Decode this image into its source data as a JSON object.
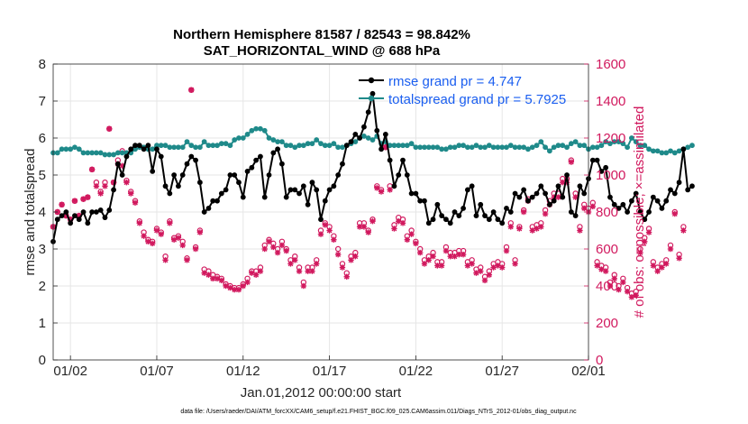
{
  "chart_data": {
    "type": "line",
    "title": "Northern Hemisphere 81587 / 82543 = 98.842%",
    "subtitle": "SAT_HORIZONTAL_WIND @ 688 hPa",
    "xlabel": "Jan.01,2012 00:00:00 start",
    "ylabel_left": "rmse and totalspread",
    "ylabel_right": "# of obs: o=possible; ×=assimilated",
    "footer": "data file: /Users/raeder/DAI/ATM_forcXX/CAM6_setup/f.e21.FHIST_BGC.f09_025.CAM6assim.011/Diags_NTrS_2012-01/obs_diag_output.nc",
    "xlim": [
      0.5,
      31.5
    ],
    "ylim_left": [
      0,
      8
    ],
    "ylim_right": [
      0,
      1600
    ],
    "x_ticks": [
      1.5,
      6.5,
      11.5,
      16.5,
      21.5,
      26.5,
      31.5
    ],
    "x_tick_labels": [
      "01/02",
      "01/07",
      "01/12",
      "01/17",
      "01/22",
      "01/27",
      "02/01"
    ],
    "y_ticks_left": [
      0,
      1,
      2,
      3,
      4,
      5,
      6,
      7,
      8
    ],
    "y_ticks_right": [
      0,
      200,
      400,
      600,
      800,
      1000,
      1200,
      1400,
      1600
    ],
    "grid": true,
    "legend_position": "top-right",
    "colors": {
      "rmse": "#000000",
      "spread": "#1f8a8a",
      "obs": "#d1195e",
      "legend_text": "#1a5ef0",
      "right_axis": "#d1195e"
    },
    "series": [
      {
        "name": "rmse grand pr = 4.747",
        "color": "#000000",
        "x_start": 0.5,
        "x_step": 0.25,
        "values": [
          3.2,
          3.8,
          3.9,
          4.0,
          3.7,
          3.9,
          3.8,
          4.0,
          3.7,
          4.0,
          4.0,
          4.05,
          3.85,
          4.05,
          4.6,
          5.3,
          5.0,
          5.5,
          5.7,
          5.8,
          5.8,
          5.7,
          5.8,
          5.1,
          5.7,
          5.5,
          4.7,
          4.5,
          5.0,
          4.7,
          5.0,
          5.3,
          5.5,
          5.4,
          4.8,
          4.0,
          4.1,
          4.3,
          4.3,
          4.5,
          4.6,
          5.0,
          5.0,
          4.8,
          4.4,
          5.1,
          5.2,
          5.4,
          5.5,
          4.4,
          5.0,
          5.6,
          5.7,
          5.3,
          4.4,
          4.6,
          4.6,
          4.5,
          4.7,
          4.2,
          4.8,
          4.6,
          3.8,
          4.3,
          4.6,
          4.7,
          5.0,
          5.3,
          5.8,
          5.9,
          6.1,
          6.0,
          6.3,
          6.7,
          7.2,
          6.2,
          5.7,
          6.1,
          5.4,
          4.7,
          5.0,
          5.4,
          5.0,
          4.5,
          4.5,
          4.3,
          4.3,
          3.7,
          3.8,
          4.2,
          3.9,
          3.8,
          3.7,
          4.0,
          3.9,
          4.1,
          4.6,
          4.7,
          3.9,
          4.2,
          3.9,
          3.8,
          4.0,
          3.8,
          3.7,
          4.1,
          4.0,
          4.5,
          4.4,
          4.6,
          4.3,
          4.4,
          4.5,
          4.7,
          4.5,
          4.2,
          4.3,
          4.7,
          4.4,
          5.0,
          4.0,
          3.9,
          4.7,
          4.5,
          4.9,
          5.4,
          5.4,
          5.1,
          5.2,
          4.4,
          4.2,
          4.1,
          4.2,
          4.0,
          4.3,
          4.5,
          4.0,
          3.8,
          4.0,
          4.4,
          4.3,
          4.1,
          4.3,
          4.6,
          4.5,
          4.8,
          5.7,
          4.6,
          4.7
        ]
      },
      {
        "name": "totalspread grand pr = 5.7925",
        "color": "#1f8a8a",
        "x_start": 0.5,
        "x_step": 0.25,
        "values": [
          5.6,
          5.6,
          5.7,
          5.7,
          5.7,
          5.75,
          5.7,
          5.6,
          5.6,
          5.6,
          5.6,
          5.6,
          5.55,
          5.55,
          5.55,
          5.6,
          5.6,
          5.6,
          5.6,
          5.7,
          5.75,
          5.75,
          5.7,
          5.7,
          5.8,
          5.8,
          5.8,
          5.75,
          5.75,
          5.75,
          5.75,
          5.9,
          5.8,
          5.75,
          5.75,
          5.9,
          5.8,
          5.8,
          5.8,
          5.85,
          5.85,
          5.8,
          5.95,
          6.0,
          6.0,
          6.1,
          6.2,
          6.25,
          6.25,
          6.2,
          6.0,
          5.95,
          5.9,
          5.9,
          5.8,
          5.8,
          5.75,
          5.8,
          5.8,
          5.85,
          5.85,
          5.95,
          5.85,
          5.8,
          5.8,
          5.85,
          5.75,
          5.75,
          5.8,
          5.85,
          5.9,
          6.0,
          6.05,
          6.0,
          5.95,
          6.05,
          5.85,
          5.9,
          5.8,
          5.8,
          5.8,
          5.8,
          5.8,
          5.85,
          5.75,
          5.75,
          5.75,
          5.75,
          5.75,
          5.75,
          5.7,
          5.7,
          5.75,
          5.75,
          5.8,
          5.8,
          5.75,
          5.75,
          5.8,
          5.75,
          5.75,
          5.8,
          5.75,
          5.75,
          5.75,
          5.75,
          5.8,
          5.75,
          5.75,
          5.75,
          5.7,
          5.75,
          5.8,
          5.9,
          5.75,
          5.65,
          5.75,
          5.8,
          5.8,
          5.75,
          5.85,
          5.9,
          5.8,
          5.8,
          5.7,
          5.75,
          5.75,
          5.8,
          5.9,
          5.85,
          5.9,
          5.9,
          5.85,
          5.75,
          6.0,
          5.9,
          5.8,
          5.8,
          5.7,
          5.65,
          5.65,
          5.6,
          5.6,
          5.65,
          5.6,
          5.65,
          5.7,
          5.75,
          5.8
        ]
      }
    ],
    "obs_assimilated": {
      "x_start": 0.5,
      "x_step": 0.25,
      "values": [
        720,
        800,
        840,
        780,
        760,
        860,
        780,
        870,
        880,
        1030,
        940,
        900,
        940,
        1250,
        960,
        1060,
        1050,
        960,
        900,
        850,
        740,
        670,
        640,
        630,
        700,
        680,
        540,
        740,
        650,
        660,
        620,
        540,
        1460,
        600,
        690,
        470,
        460,
        440,
        440,
        430,
        400,
        390,
        380,
        380,
        400,
        420,
        470,
        460,
        480,
        600,
        640,
        610,
        580,
        620,
        590,
        520,
        540,
        480,
        400,
        480,
        480,
        520,
        680,
        730,
        700,
        650,
        570,
        500,
        450,
        540,
        560,
        720,
        720,
        690,
        750,
        930,
        910,
        1150,
        920,
        710,
        750,
        740,
        650,
        680,
        630,
        580,
        520,
        540,
        560,
        510,
        510,
        590,
        560,
        560,
        570,
        570,
        510,
        520,
        470,
        480,
        430,
        460,
        500,
        510,
        500,
        590,
        720,
        520,
        710,
        800,
        860,
        700,
        710,
        720,
        790,
        840,
        880,
        880,
        960,
        960,
        1070,
        880,
        700,
        820,
        800,
        830,
        510,
        490,
        480,
        400,
        440,
        380,
        420,
        370,
        340,
        350,
        580,
        640,
        690,
        510,
        480,
        500,
        520,
        600,
        790,
        550,
        700
      ]
    },
    "obs_possible": {
      "x_start": 0.5,
      "x_step": 0.25,
      "values": [
        720,
        800,
        840,
        780,
        760,
        860,
        780,
        870,
        880,
        1030,
        960,
        910,
        960,
        1250,
        960,
        1080,
        1130,
        970,
        910,
        860,
        750,
        690,
        650,
        640,
        710,
        690,
        560,
        750,
        660,
        670,
        640,
        550,
        1460,
        610,
        700,
        490,
        480,
        460,
        450,
        440,
        410,
        400,
        390,
        390,
        410,
        440,
        480,
        480,
        500,
        620,
        650,
        630,
        600,
        640,
        600,
        540,
        560,
        500,
        420,
        500,
        500,
        540,
        700,
        740,
        720,
        670,
        600,
        520,
        470,
        560,
        580,
        740,
        740,
        700,
        760,
        940,
        920,
        1150,
        940,
        730,
        770,
        760,
        670,
        700,
        640,
        600,
        540,
        560,
        580,
        530,
        530,
        610,
        580,
        580,
        590,
        590,
        530,
        540,
        490,
        500,
        450,
        480,
        520,
        530,
        520,
        610,
        740,
        540,
        720,
        810,
        870,
        720,
        730,
        740,
        810,
        860,
        900,
        900,
        980,
        980,
        1080,
        900,
        720,
        840,
        820,
        850,
        530,
        510,
        500,
        420,
        460,
        400,
        440,
        390,
        360,
        370,
        600,
        660,
        710,
        530,
        500,
        520,
        540,
        620,
        800,
        570,
        720
      ]
    }
  }
}
